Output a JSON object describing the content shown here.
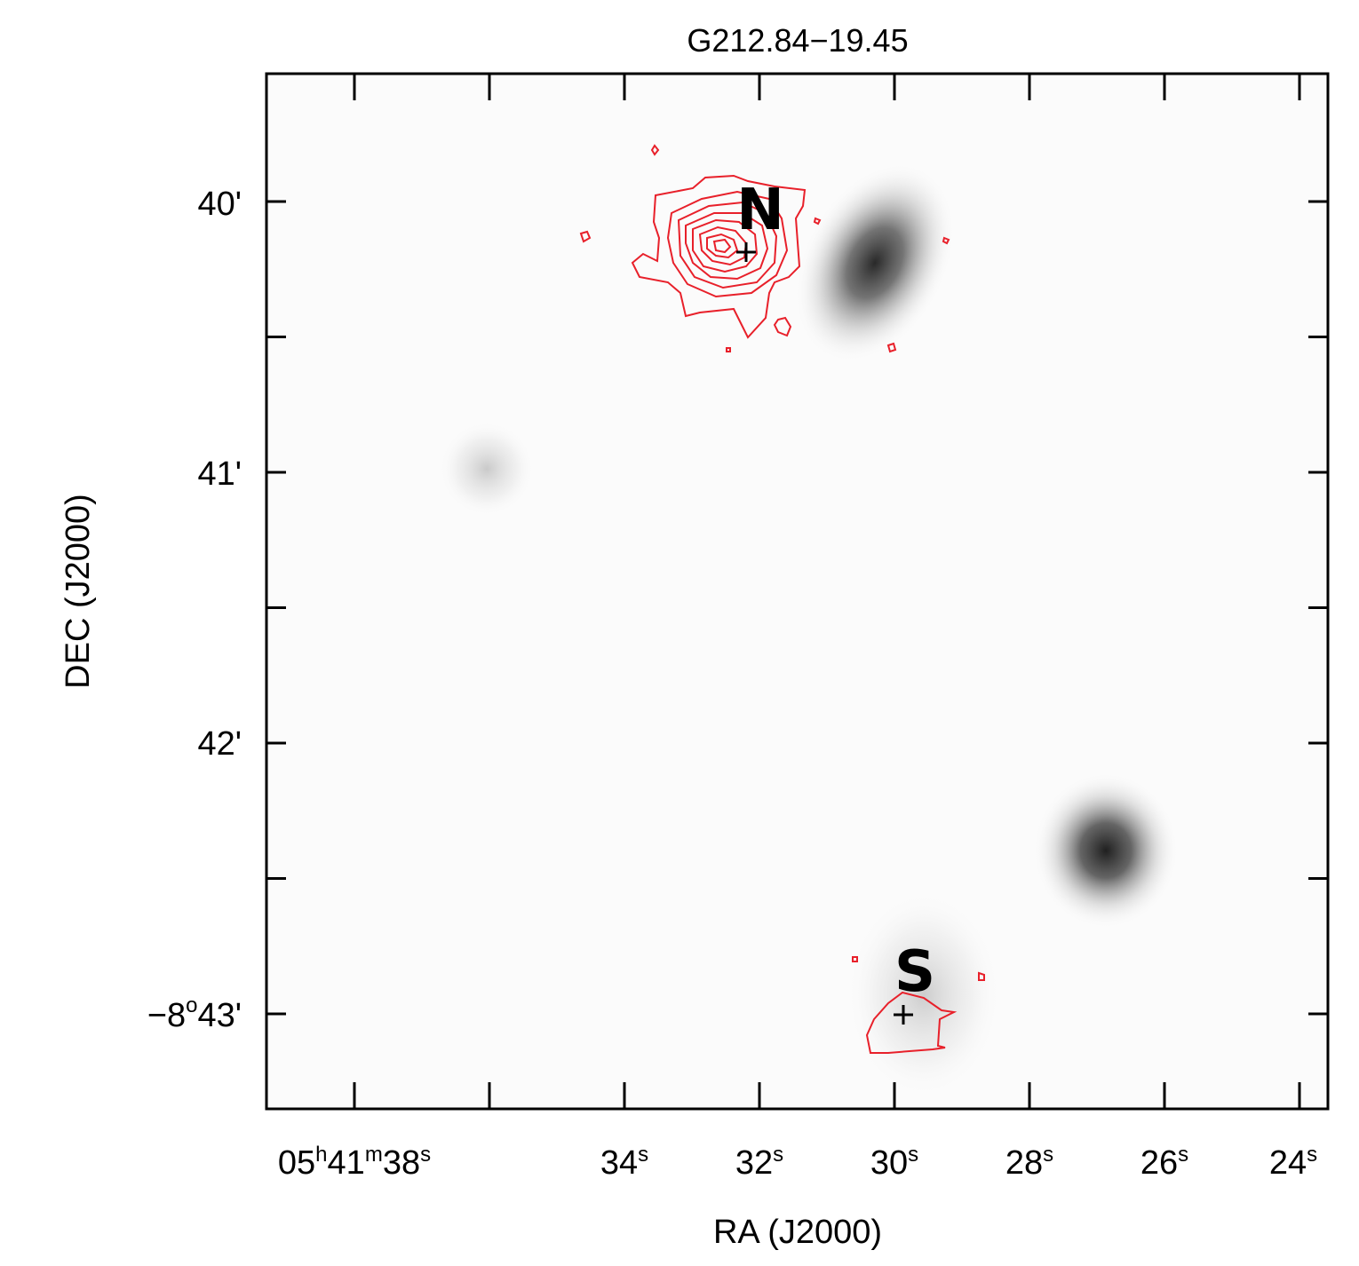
{
  "chart_data": {
    "type": "image_contour",
    "title": "G212.84−19.45",
    "xlabel": "RA (J2000)",
    "ylabel": "DEC (J2000)",
    "x_ticks": [
      {
        "value": 38,
        "parts": [
          [
            "05",
            "h"
          ],
          [
            "41",
            "m"
          ],
          [
            "38",
            "s"
          ]
        ]
      },
      {
        "value": 34,
        "parts": [
          [
            "34",
            "s"
          ]
        ]
      },
      {
        "value": 32,
        "parts": [
          [
            "32",
            "s"
          ]
        ]
      },
      {
        "value": 30,
        "parts": [
          [
            "30",
            "s"
          ]
        ]
      },
      {
        "value": 28,
        "parts": [
          [
            "28",
            "s"
          ]
        ]
      },
      {
        "value": 26,
        "parts": [
          [
            "26",
            "s"
          ]
        ]
      },
      {
        "value": 24,
        "parts": [
          [
            "24",
            "s"
          ]
        ]
      }
    ],
    "y_ticks": [
      {
        "value": 40,
        "label": "40'"
      },
      {
        "value": 41,
        "label": "41'"
      },
      {
        "value": 42,
        "label": "42'"
      },
      {
        "value": 43,
        "label": "−8°43'",
        "deg_prefix": "−8",
        "deg_sym": "o",
        "rest": "43'"
      }
    ],
    "xlim": [
      38.6,
      23.4
    ],
    "ylim": [
      43.36,
      39.52
    ],
    "x_minor": [
      36,
      34,
      32,
      30,
      28,
      26,
      24
    ],
    "y_minor": [
      39.66,
      40.5,
      41.5,
      42.5
    ],
    "image_colormap": "greyscale",
    "contour_color": "#e8202a",
    "marker_color": "#000000",
    "sources": [
      {
        "name": "N",
        "ra": 32.1,
        "dec": 40.19
      },
      {
        "name": "S",
        "ra": 29.8,
        "dec": 43.0
      }
    ]
  }
}
